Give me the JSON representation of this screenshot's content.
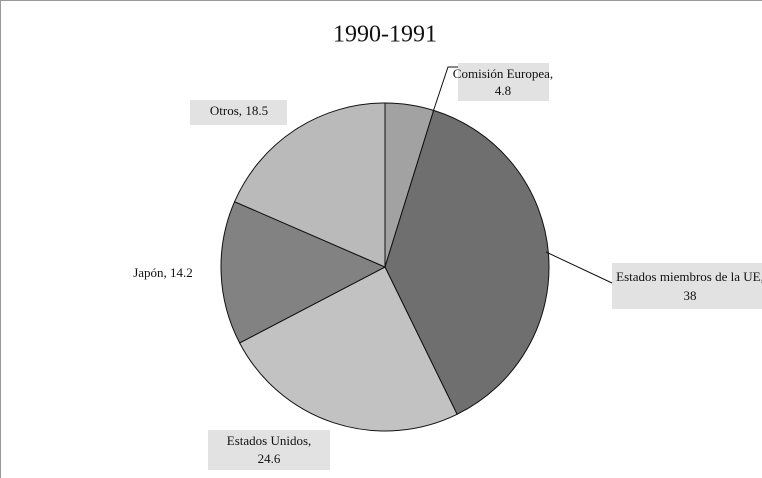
{
  "chart_data": {
    "type": "pie",
    "title": "1990-1991",
    "categories": [
      "Comisión Europea,",
      "Estados miembros de la UE,",
      "Estados Unidos,",
      "Japón,",
      "Otros,"
    ],
    "values": [
      4.8,
      38,
      24.6,
      14.2,
      18.5
    ],
    "colors": [
      "#a2a2a2",
      "#6f6f6f",
      "#c2c2c2",
      "#828282",
      "#bababa"
    ]
  }
}
